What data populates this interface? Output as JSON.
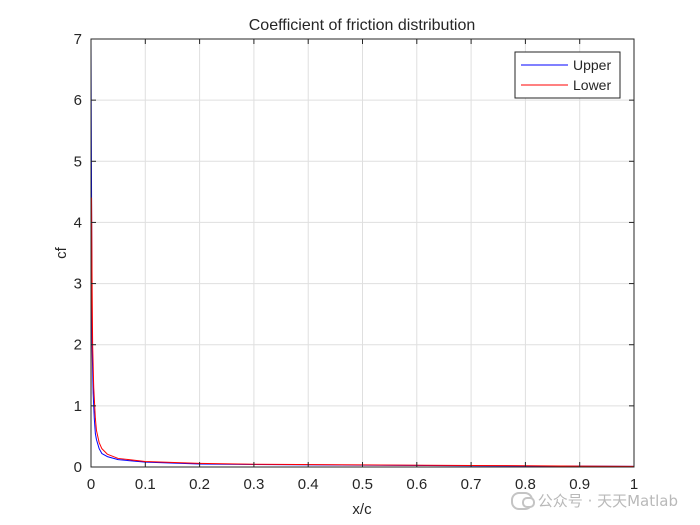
{
  "chart_data": {
    "type": "line",
    "title": "Coefficient of friction distribution",
    "xlabel": "x/c",
    "ylabel": "cf",
    "xlim": [
      0,
      1
    ],
    "ylim": [
      0,
      7
    ],
    "xticks": [
      0,
      0.1,
      0.2,
      0.3,
      0.4,
      0.5,
      0.6,
      0.7,
      0.8,
      0.9,
      1
    ],
    "xtick_labels": [
      "0",
      "0.1",
      "0.2",
      "0.3",
      "0.4",
      "0.5",
      "0.6",
      "0.7",
      "0.8",
      "0.9",
      "1"
    ],
    "yticks": [
      0,
      1,
      2,
      3,
      4,
      5,
      6,
      7
    ],
    "ytick_labels": [
      "0",
      "1",
      "2",
      "3",
      "4",
      "5",
      "6",
      "7"
    ],
    "grid": true,
    "legend_position": "top-right",
    "series": [
      {
        "name": "Upper",
        "color": "#0000ff",
        "x": [
          0.0,
          0.001,
          0.002,
          0.004,
          0.006,
          0.008,
          0.01,
          0.015,
          0.02,
          0.03,
          0.05,
          0.1,
          0.2,
          0.3,
          0.5,
          0.7,
          0.9,
          1.0
        ],
        "y": [
          7.0,
          4.5,
          2.0,
          1.2,
          0.8,
          0.55,
          0.45,
          0.3,
          0.22,
          0.17,
          0.12,
          0.08,
          0.05,
          0.04,
          0.03,
          0.02,
          0.015,
          0.01
        ]
      },
      {
        "name": "Lower",
        "color": "#ff0000",
        "x": [
          0.0,
          0.001,
          0.002,
          0.003,
          0.005,
          0.008,
          0.01,
          0.015,
          0.02,
          0.03,
          0.05,
          0.1,
          0.2,
          0.3,
          0.5,
          0.7,
          0.9,
          1.0
        ],
        "y": [
          1.0,
          4.4,
          3.0,
          2.0,
          1.3,
          0.8,
          0.6,
          0.4,
          0.3,
          0.21,
          0.14,
          0.09,
          0.06,
          0.045,
          0.035,
          0.025,
          0.015,
          0.01
        ]
      }
    ]
  },
  "watermark": {
    "text": "公众号 · 天天Matlab"
  }
}
